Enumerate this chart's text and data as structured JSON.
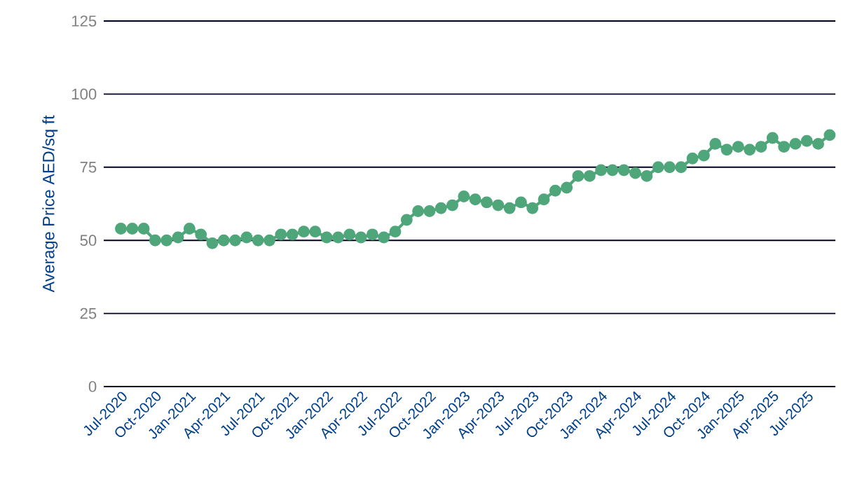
{
  "chart_data": {
    "type": "line",
    "ylabel": "Average Price AED/sq ft",
    "categories": [
      "Jul-2020",
      null,
      null,
      "Oct-2020",
      null,
      null,
      "Jan-2021",
      null,
      null,
      "Apr-2021",
      null,
      null,
      "Jul-2021",
      null,
      null,
      "Oct-2021",
      null,
      null,
      "Jan-2022",
      null,
      null,
      "Apr-2022",
      null,
      null,
      "Jul-2022",
      null,
      null,
      "Oct-2022",
      null,
      null,
      "Jan-2023",
      null,
      null,
      "Apr-2023",
      null,
      null,
      "Jul-2023",
      null,
      null,
      "Oct-2023",
      null,
      null,
      "Jan-2024",
      null,
      null,
      "Apr-2024",
      null,
      null,
      "Jul-2024",
      null,
      null,
      "Oct-2024",
      null,
      null,
      "Jan-2025",
      null,
      null,
      "Apr-2025",
      null,
      null,
      "Jul-2025",
      null,
      null
    ],
    "series": [
      {
        "color": "#4ea67a",
        "values": [
          54,
          54,
          54,
          50,
          50,
          51,
          54,
          52,
          49,
          50,
          50,
          51,
          50,
          50,
          52,
          52,
          53,
          53,
          51,
          51,
          52,
          51,
          52,
          51,
          53,
          57,
          60,
          60,
          61,
          62,
          65,
          64,
          63,
          62,
          61,
          63,
          61,
          64,
          67,
          68,
          72,
          72,
          74,
          74,
          74,
          73,
          72,
          75,
          75,
          75,
          78,
          79,
          83,
          81,
          82,
          81,
          82,
          85,
          82,
          83,
          84,
          83,
          86
        ]
      }
    ],
    "ylim": [
      0,
      125
    ],
    "yticks": [
      0,
      25,
      50,
      75,
      100,
      125
    ],
    "grid": "y",
    "marker": "circle",
    "line_style": "solid"
  }
}
